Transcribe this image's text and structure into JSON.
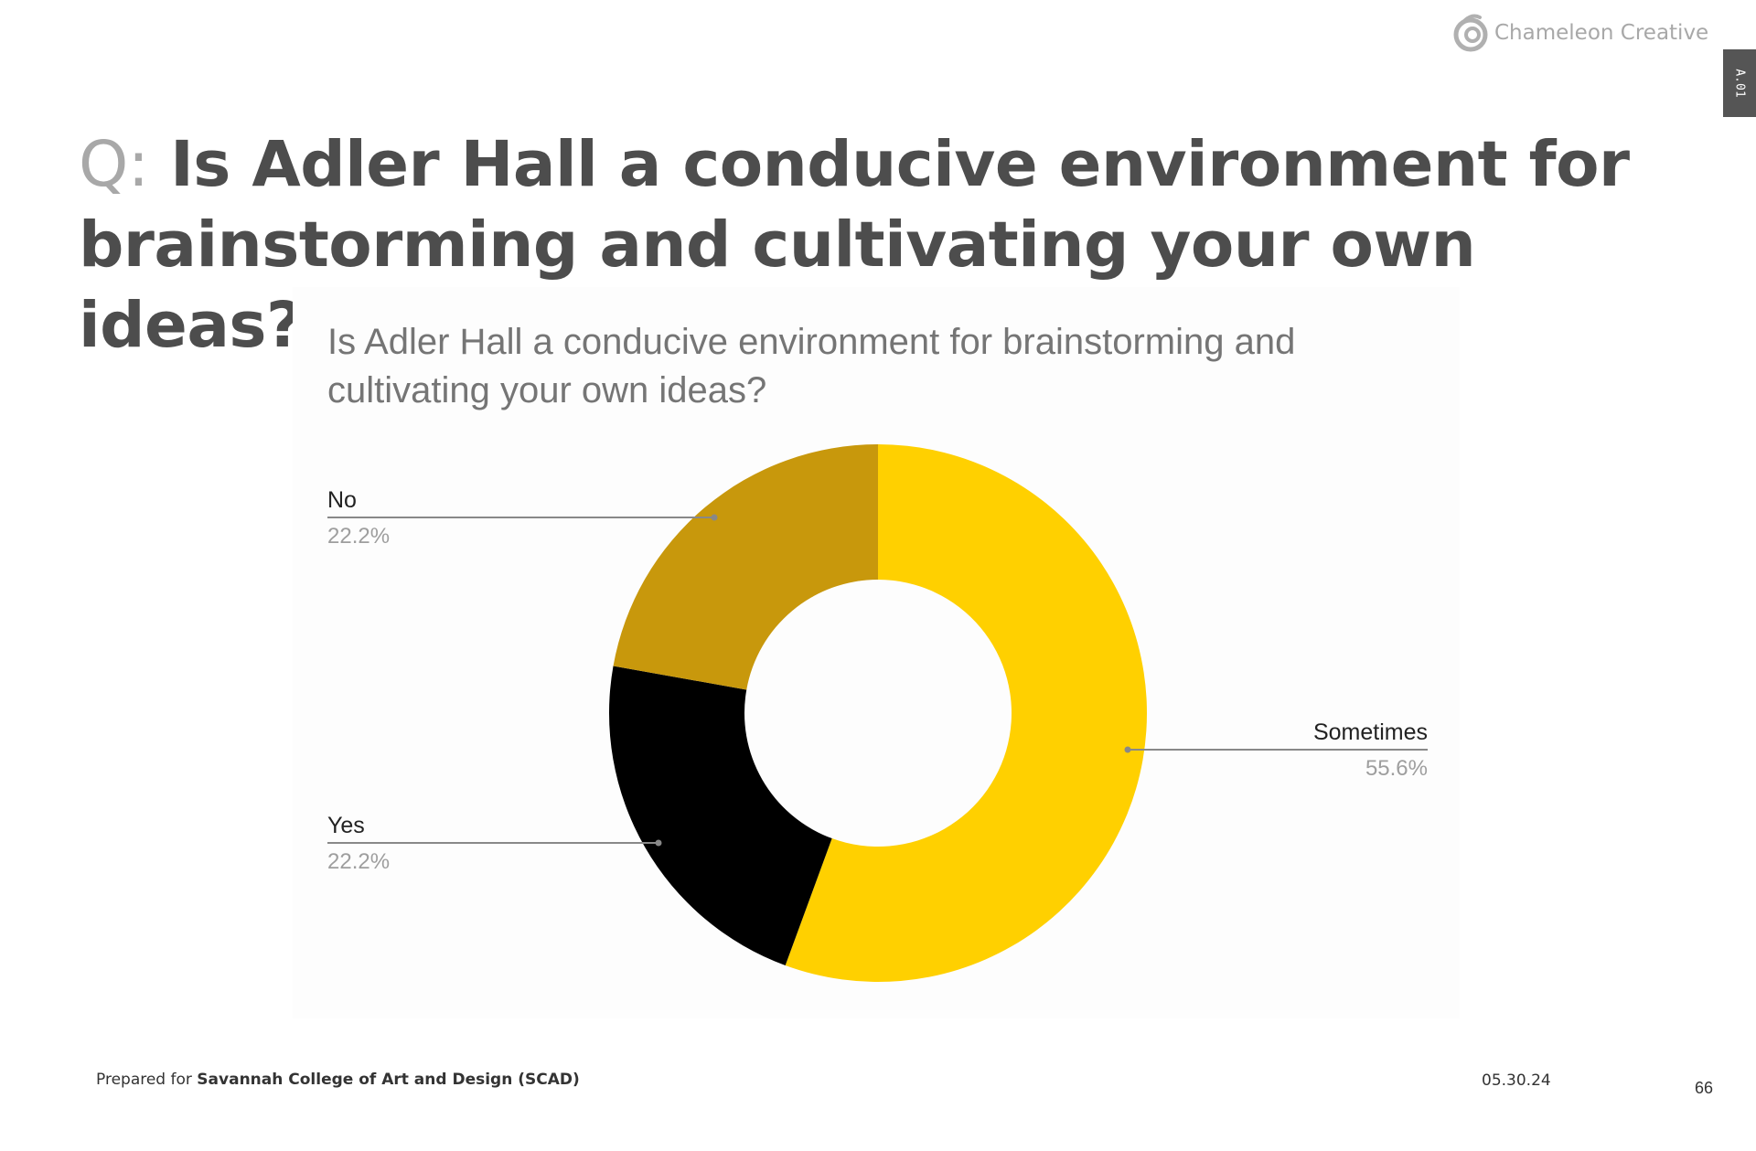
{
  "header": {
    "logo_text": "Chameleon Creative",
    "side_tab": "A.01"
  },
  "slide": {
    "question_prefix": "Q:",
    "question": "Is Adler Hall a conducive environment for brainstorming and cultivating your own ideas?"
  },
  "chart_data": {
    "type": "pie",
    "title": "Is Adler Hall a conducive environment for brainstorming and cultivating your own ideas?",
    "slices": [
      {
        "label": "Sometimes",
        "value": 55.6,
        "display": "55.6%",
        "color": "#ffd000"
      },
      {
        "label": "Yes",
        "value": 22.2,
        "display": "22.2%",
        "color": "#000000"
      },
      {
        "label": "No",
        "value": 22.2,
        "display": "22.2%",
        "color": "#c8980c"
      }
    ],
    "donut": true,
    "start": "12 o'clock, clockwise",
    "label_text_color": "#222222",
    "label_value_color": "#9e9e9e",
    "leader_color": "#888888"
  },
  "footer": {
    "prepared_prefix": "Prepared for",
    "prepared_client": "Savannah College of Art and Design (SCAD)",
    "date": "05.30.24",
    "page": "66"
  }
}
